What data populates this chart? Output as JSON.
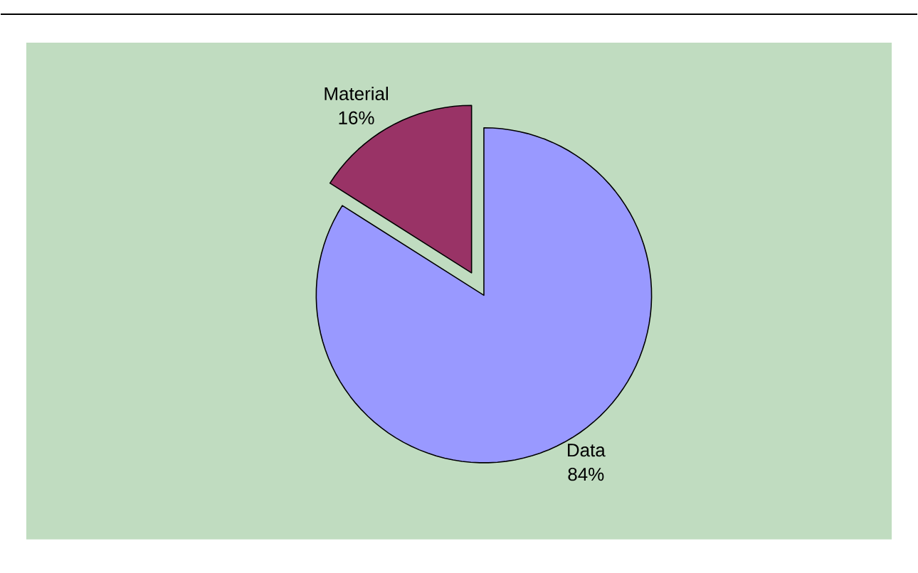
{
  "chart_data": {
    "type": "pie",
    "categories": [
      "Data",
      "Material"
    ],
    "values": [
      84,
      16
    ],
    "colors": [
      "#9999ff",
      "#993366"
    ],
    "value_labels": [
      "84%",
      "16%"
    ]
  }
}
